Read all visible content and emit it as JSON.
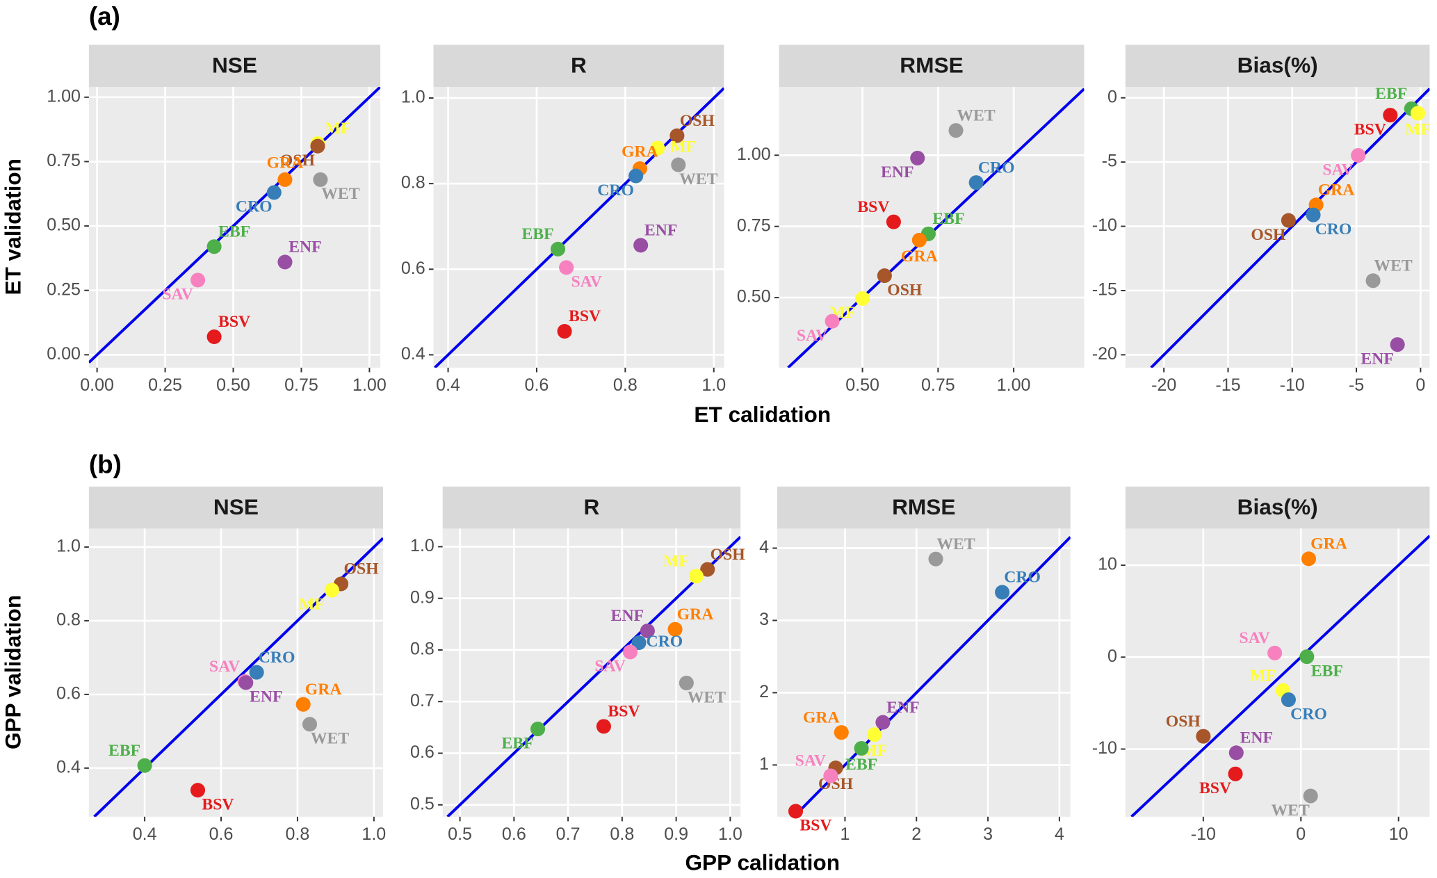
{
  "figure": {
    "panel_labels": [
      "(a)",
      "(b)"
    ],
    "rows": [
      {
        "y_label": "ET validation",
        "x_label": "ET calidation"
      },
      {
        "y_label": "GPP validation",
        "x_label": "GPP calidation"
      }
    ]
  },
  "chart_data": [
    {
      "type": "scatter",
      "title": "NSE",
      "grid": true,
      "identity_line": true,
      "xlim": [
        -0.03,
        1.04
      ],
      "ylim": [
        -0.05,
        1.04
      ],
      "xticks": [
        {
          "value": 0,
          "label": "0.00"
        },
        0.25,
        {
          "value": 0.5,
          "label": "0.50"
        },
        0.75,
        {
          "value": 1,
          "label": "1.00"
        }
      ],
      "yticks": [
        {
          "value": 0,
          "label": "0.00"
        },
        0.25,
        {
          "value": 0.5,
          "label": "0.50"
        },
        0.75,
        {
          "value": 1,
          "label": "1.00"
        }
      ],
      "series": [
        {
          "name": "MF",
          "color": "#ffff33",
          "x": [
            0.81
          ],
          "values": [
            0.82
          ]
        },
        {
          "name": "OSH",
          "color": "#a65628",
          "x": [
            0.81
          ],
          "values": [
            0.81
          ]
        },
        {
          "name": "GRA",
          "color": "#ff7f00",
          "x": [
            0.69
          ],
          "values": [
            0.68
          ]
        },
        {
          "name": "CRO",
          "color": "#377eb8",
          "x": [
            0.65
          ],
          "values": [
            0.63
          ]
        },
        {
          "name": "WET",
          "color": "#999999",
          "x": [
            0.82
          ],
          "values": [
            0.68
          ]
        },
        {
          "name": "EBF",
          "color": "#4daf4a",
          "x": [
            0.43
          ],
          "values": [
            0.42
          ]
        },
        {
          "name": "ENF",
          "color": "#984ea3",
          "x": [
            0.69
          ],
          "values": [
            0.36
          ]
        },
        {
          "name": "SAV",
          "color": "#f781bf",
          "x": [
            0.37
          ],
          "values": [
            0.29
          ]
        },
        {
          "name": "BSV",
          "color": "#e41a1c",
          "x": [
            0.43
          ],
          "values": [
            0.07
          ]
        }
      ]
    },
    {
      "type": "scatter",
      "title": "R",
      "grid": true,
      "identity_line": true,
      "xlim": [
        0.367,
        1.023
      ],
      "ylim": [
        0.37,
        1.026
      ],
      "xticks": [
        0.4,
        0.6,
        0.8,
        {
          "value": 1,
          "label": "1.0"
        }
      ],
      "yticks": [
        0.4,
        0.6,
        0.8,
        {
          "value": 1,
          "label": "1.0"
        }
      ],
      "series": [
        {
          "name": "OSH",
          "color": "#a65628",
          "x": [
            0.917
          ],
          "values": [
            0.912
          ]
        },
        {
          "name": "MF",
          "color": "#ffff33",
          "x": [
            0.873
          ],
          "values": [
            0.883
          ]
        },
        {
          "name": "GRA",
          "color": "#ff7f00",
          "x": [
            0.833
          ],
          "values": [
            0.835
          ]
        },
        {
          "name": "CRO",
          "color": "#377eb8",
          "x": [
            0.824
          ],
          "values": [
            0.818
          ]
        },
        {
          "name": "WET",
          "color": "#999999",
          "x": [
            0.92
          ],
          "values": [
            0.844
          ]
        },
        {
          "name": "EBF",
          "color": "#4daf4a",
          "x": [
            0.648
          ],
          "values": [
            0.647
          ]
        },
        {
          "name": "SAV",
          "color": "#f781bf",
          "x": [
            0.667
          ],
          "values": [
            0.604
          ]
        },
        {
          "name": "ENF",
          "color": "#984ea3",
          "x": [
            0.835
          ],
          "values": [
            0.656
          ]
        },
        {
          "name": "BSV",
          "color": "#e41a1c",
          "x": [
            0.663
          ],
          "values": [
            0.455
          ]
        }
      ]
    },
    {
      "type": "scatter",
      "title": "RMSE",
      "grid": true,
      "identity_line": true,
      "xlim": [
        0.224,
        1.233
      ],
      "ylim": [
        0.254,
        1.24
      ],
      "xticks": [
        {
          "value": 0.5,
          "label": "0.50"
        },
        0.75,
        {
          "value": 1,
          "label": "1.00"
        }
      ],
      "yticks": [
        {
          "value": 0.5,
          "label": "0.50"
        },
        0.75,
        {
          "value": 1,
          "label": "1.00"
        }
      ],
      "series": [
        {
          "name": "WET",
          "color": "#999999",
          "x": [
            0.809
          ],
          "values": [
            1.087
          ]
        },
        {
          "name": "ENF",
          "color": "#984ea3",
          "x": [
            0.682
          ],
          "values": [
            0.99
          ]
        },
        {
          "name": "CRO",
          "color": "#377eb8",
          "x": [
            0.876
          ],
          "values": [
            0.904
          ]
        },
        {
          "name": "BSV",
          "color": "#e41a1c",
          "x": [
            0.603
          ],
          "values": [
            0.766
          ]
        },
        {
          "name": "EBF",
          "color": "#4daf4a",
          "x": [
            0.718
          ],
          "values": [
            0.724
          ]
        },
        {
          "name": "GRA",
          "color": "#ff7f00",
          "x": [
            0.688
          ],
          "values": [
            0.702
          ]
        },
        {
          "name": "OSH",
          "color": "#a65628",
          "x": [
            0.573
          ],
          "values": [
            0.577
          ]
        },
        {
          "name": "MF",
          "color": "#ffff33",
          "x": [
            0.5
          ],
          "values": [
            0.497
          ]
        },
        {
          "name": "SAV",
          "color": "#f781bf",
          "x": [
            0.4
          ],
          "values": [
            0.417
          ]
        }
      ]
    },
    {
      "type": "scatter",
      "title": "Bias(%)",
      "grid": true,
      "identity_line": true,
      "xlim": [
        -23,
        0.71
      ],
      "ylim": [
        -21,
        0.85
      ],
      "xticks": [
        -20,
        -15,
        -10,
        -5,
        0
      ],
      "yticks": [
        -20,
        -15,
        -10,
        -5,
        0
      ],
      "series": [
        {
          "name": "EBF",
          "color": "#4daf4a",
          "x": [
            -0.71
          ],
          "values": [
            -0.85
          ]
        },
        {
          "name": "MF",
          "color": "#ffff33",
          "x": [
            -0.21
          ],
          "values": [
            -1.2
          ]
        },
        {
          "name": "BSV",
          "color": "#e41a1c",
          "x": [
            -2.36
          ],
          "values": [
            -1.35
          ]
        },
        {
          "name": "SAV",
          "color": "#f781bf",
          "x": [
            -4.86
          ],
          "values": [
            -4.48
          ]
        },
        {
          "name": "GRA",
          "color": "#ff7f00",
          "x": [
            -8.14
          ],
          "values": [
            -8.33
          ]
        },
        {
          "name": "CRO",
          "color": "#377eb8",
          "x": [
            -8.36
          ],
          "values": [
            -9.11
          ]
        },
        {
          "name": "OSH",
          "color": "#a65628",
          "x": [
            -10.29
          ],
          "values": [
            -9.54
          ]
        },
        {
          "name": "WET",
          "color": "#999999",
          "x": [
            -3.7
          ],
          "values": [
            -14.23
          ]
        },
        {
          "name": "ENF",
          "color": "#984ea3",
          "x": [
            -1.8
          ],
          "values": [
            -19.2
          ]
        }
      ]
    },
    {
      "type": "scatter",
      "title": "NSE",
      "grid": true,
      "identity_line": true,
      "xlim": [
        0.254,
        1.024
      ],
      "ylim": [
        0.268,
        1.05
      ],
      "xticks": [
        0.4,
        0.6,
        0.8,
        {
          "value": 1,
          "label": "1.0"
        }
      ],
      "yticks": [
        0.4,
        0.6,
        0.8,
        {
          "value": 1,
          "label": "1.0"
        }
      ],
      "series": [
        {
          "name": "OSH",
          "color": "#a65628",
          "x": [
            0.914
          ],
          "values": [
            0.9
          ]
        },
        {
          "name": "MF",
          "color": "#ffff33",
          "x": [
            0.89
          ],
          "values": [
            0.883
          ]
        },
        {
          "name": "CRO",
          "color": "#377eb8",
          "x": [
            0.693
          ],
          "values": [
            0.66
          ]
        },
        {
          "name": "SAV",
          "color": "#f781bf",
          "x": [
            0.662
          ],
          "values": [
            0.635
          ]
        },
        {
          "name": "ENF",
          "color": "#984ea3",
          "x": [
            0.665
          ],
          "values": [
            0.632
          ]
        },
        {
          "name": "GRA",
          "color": "#ff7f00",
          "x": [
            0.815
          ],
          "values": [
            0.573
          ]
        },
        {
          "name": "WET",
          "color": "#999999",
          "x": [
            0.832
          ],
          "values": [
            0.519
          ]
        },
        {
          "name": "EBF",
          "color": "#4daf4a",
          "x": [
            0.4
          ],
          "values": [
            0.407
          ]
        },
        {
          "name": "BSV",
          "color": "#e41a1c",
          "x": [
            0.539
          ],
          "values": [
            0.34
          ]
        }
      ]
    },
    {
      "type": "scatter",
      "title": "R",
      "grid": true,
      "identity_line": true,
      "xlim": [
        0.468,
        1.019
      ],
      "ylim": [
        0.477,
        1.035
      ],
      "xticks": [
        0.5,
        0.6,
        0.7,
        0.8,
        0.9,
        {
          "value": 1,
          "label": "1.0"
        }
      ],
      "yticks": [
        0.5,
        0.6,
        0.7,
        0.8,
        0.9,
        {
          "value": 1,
          "label": "1.0"
        }
      ],
      "series": [
        {
          "name": "OSH",
          "color": "#a65628",
          "x": [
            0.958
          ],
          "values": [
            0.956
          ]
        },
        {
          "name": "MF",
          "color": "#ffff33",
          "x": [
            0.937
          ],
          "values": [
            0.943
          ]
        },
        {
          "name": "GRA",
          "color": "#ff7f00",
          "x": [
            0.898
          ],
          "values": [
            0.84
          ]
        },
        {
          "name": "ENF",
          "color": "#984ea3",
          "x": [
            0.847
          ],
          "values": [
            0.837
          ]
        },
        {
          "name": "CRO",
          "color": "#377eb8",
          "x": [
            0.831
          ],
          "values": [
            0.814
          ]
        },
        {
          "name": "SAV",
          "color": "#f781bf",
          "x": [
            0.815
          ],
          "values": [
            0.796
          ]
        },
        {
          "name": "WET",
          "color": "#999999",
          "x": [
            0.919
          ],
          "values": [
            0.736
          ]
        },
        {
          "name": "BSV",
          "color": "#e41a1c",
          "x": [
            0.766
          ],
          "values": [
            0.652
          ]
        },
        {
          "name": "EBF",
          "color": "#4daf4a",
          "x": [
            0.644
          ],
          "values": [
            0.647
          ]
        }
      ]
    },
    {
      "type": "scatter",
      "title": "RMSE",
      "grid": true,
      "identity_line": true,
      "xlim": [
        0.051,
        4.154
      ],
      "ylim": [
        0.284,
        4.27
      ],
      "xticks": [
        1,
        2,
        3,
        4
      ],
      "yticks": [
        1,
        2,
        3,
        4
      ],
      "series": [
        {
          "name": "WET",
          "color": "#999999",
          "x": [
            2.27
          ],
          "values": [
            3.85
          ]
        },
        {
          "name": "CRO",
          "color": "#377eb8",
          "x": [
            3.2
          ],
          "values": [
            3.39
          ]
        },
        {
          "name": "GRA",
          "color": "#ff7f00",
          "x": [
            0.95
          ],
          "values": [
            1.45
          ]
        },
        {
          "name": "ENF",
          "color": "#984ea3",
          "x": [
            1.53
          ],
          "values": [
            1.59
          ]
        },
        {
          "name": "MF",
          "color": "#ffff33",
          "x": [
            1.41
          ],
          "values": [
            1.42
          ]
        },
        {
          "name": "EBF",
          "color": "#4daf4a",
          "x": [
            1.23
          ],
          "values": [
            1.23
          ]
        },
        {
          "name": "OSH",
          "color": "#a65628",
          "x": [
            0.87
          ],
          "values": [
            0.96
          ]
        },
        {
          "name": "SAV",
          "color": "#f781bf",
          "x": [
            0.8
          ],
          "values": [
            0.85
          ]
        },
        {
          "name": "BSV",
          "color": "#e41a1c",
          "x": [
            0.31
          ],
          "values": [
            0.36
          ]
        }
      ]
    },
    {
      "type": "scatter",
      "title": "Bias(%)",
      "grid": true,
      "identity_line": true,
      "xlim": [
        -17.98,
        13.19
      ],
      "ylim": [
        -17.36,
        13.98
      ],
      "xticks": [
        -10,
        0,
        10
      ],
      "yticks": [
        -10,
        0,
        10
      ],
      "series": [
        {
          "name": "GRA",
          "color": "#ff7f00",
          "x": [
            0.8
          ],
          "values": [
            10.7
          ]
        },
        {
          "name": "SAV",
          "color": "#f781bf",
          "x": [
            -2.68
          ],
          "values": [
            0.45
          ]
        },
        {
          "name": "EBF",
          "color": "#4daf4a",
          "x": [
            0.61
          ],
          "values": [
            0.05
          ]
        },
        {
          "name": "MF",
          "color": "#ffff33",
          "x": [
            -1.83
          ],
          "values": [
            -3.63
          ]
        },
        {
          "name": "CRO",
          "color": "#377eb8",
          "x": [
            -1.27
          ],
          "values": [
            -4.63
          ]
        },
        {
          "name": "OSH",
          "color": "#a65628",
          "x": [
            -10
          ],
          "values": [
            -8.61
          ]
        },
        {
          "name": "ENF",
          "color": "#984ea3",
          "x": [
            -6.62
          ],
          "values": [
            -10.4
          ]
        },
        {
          "name": "BSV",
          "color": "#e41a1c",
          "x": [
            -6.71
          ],
          "values": [
            -12.7
          ]
        },
        {
          "name": "WET",
          "color": "#999999",
          "x": [
            0.99
          ],
          "values": [
            -15.1
          ]
        }
      ]
    }
  ]
}
